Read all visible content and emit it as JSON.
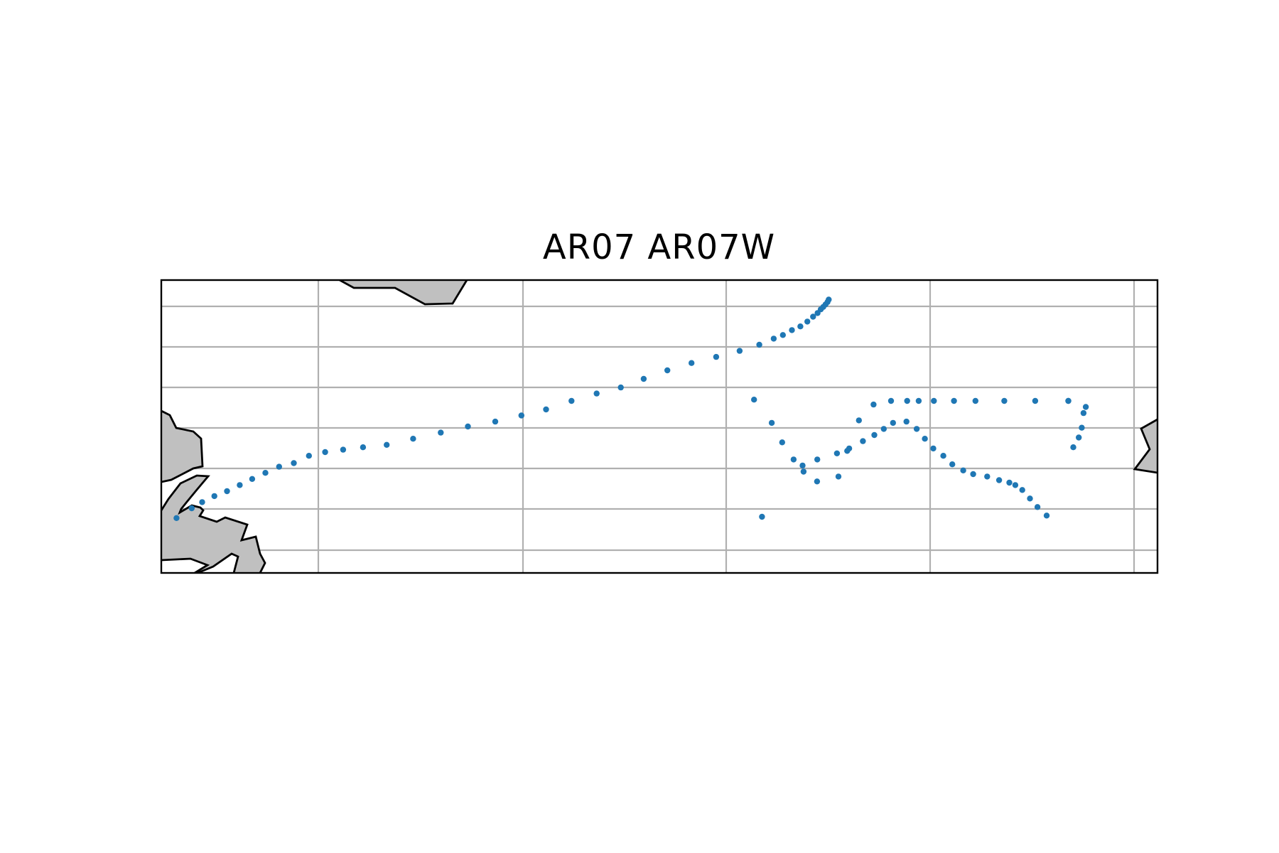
{
  "title": "AR07 AR07W",
  "colors": {
    "land_fill": "#c0c0c0",
    "coastline": "#000000",
    "gridline": "#b0b0b0",
    "station_marker": "#1f77b4",
    "frame": "#000000",
    "background": "#ffffff"
  },
  "map": {
    "gridlines": true,
    "tick_labels_shown": false
  },
  "stations": [
    [
      61,
      45
    ],
    [
      122,
      53
    ],
    [
      164,
      58
    ],
    [
      213,
      63
    ],
    [
      264,
      67
    ],
    [
      315,
      72
    ],
    [
      365,
      77
    ],
    [
      418,
      82
    ],
    [
      473,
      87
    ],
    [
      532,
      90
    ],
    [
      593,
      96
    ],
    [
      658,
      99
    ],
    [
      730,
      101
    ],
    [
      810,
      103
    ],
    [
      905,
      105
    ],
    [
      1011,
      110
    ],
    [
      1122,
      115
    ],
    [
      1231,
      120
    ],
    [
      1341,
      124
    ],
    [
      1446,
      129
    ],
    [
      1545,
      134
    ],
    [
      1647,
      141
    ],
    [
      1748,
      147
    ],
    [
      1845,
      152
    ],
    [
      1937,
      159
    ],
    [
      2032,
      166
    ],
    [
      2129,
      172
    ],
    [
      2228,
      177
    ],
    [
      2322,
      182
    ],
    [
      2401,
      187
    ],
    [
      2459,
      192
    ],
    [
      2496,
      195
    ],
    [
      2532,
      199
    ],
    [
      2566,
      202
    ],
    [
      2594,
      206
    ],
    [
      2617,
      210
    ],
    [
      2635,
      213
    ],
    [
      2648,
      216
    ],
    [
      2658,
      218
    ],
    [
      2667,
      220
    ],
    [
      2675,
      222
    ],
    [
      2680,
      224
    ],
    [
      2380,
      142
    ],
    [
      2451,
      123
    ],
    [
      2493,
      107
    ],
    [
      2539,
      93
    ],
    [
      2579,
      83
    ],
    [
      2633,
      75
    ],
    [
      2719,
      79
    ],
    [
      2754,
      100
    ],
    [
      2801,
      125
    ],
    [
      2860,
      138
    ],
    [
      2930,
      141
    ],
    [
      2995,
      141
    ],
    [
      3041,
      141
    ],
    [
      3102,
      141
    ],
    [
      3183,
      141
    ],
    [
      3269,
      141
    ],
    [
      3385,
      141
    ],
    [
      3509,
      141
    ],
    [
      3642,
      141
    ],
    [
      2575,
      88
    ],
    [
      2634,
      93
    ],
    [
      2713,
      98
    ],
    [
      2762,
      102
    ],
    [
      2817,
      108
    ],
    [
      2863,
      113
    ],
    [
      2901,
      118
    ],
    [
      2938,
      123
    ],
    [
      2992,
      124
    ],
    [
      3033,
      118
    ],
    [
      3066,
      110
    ],
    [
      3100,
      102
    ],
    [
      3140,
      96
    ],
    [
      3176,
      89
    ],
    [
      3220,
      84
    ],
    [
      3260,
      81
    ],
    [
      3316,
      79
    ],
    [
      3364,
      76
    ],
    [
      3405,
      74
    ],
    [
      3429,
      72
    ],
    [
      3457,
      68
    ],
    [
      3488,
      61
    ],
    [
      3518,
      54
    ],
    [
      3555,
      47
    ],
    [
      3642,
      141
    ],
    [
      3662,
      103
    ],
    [
      3684,
      111
    ],
    [
      3696,
      119
    ],
    [
      3703,
      131
    ],
    [
      3712,
      136
    ],
    [
      2412,
      46
    ]
  ]
}
